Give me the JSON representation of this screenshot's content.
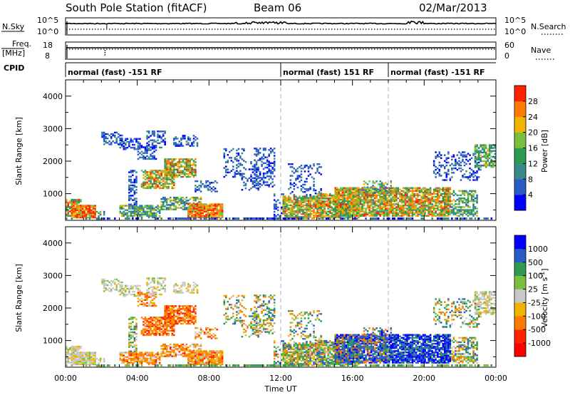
{
  "header": {
    "station": "South Pole Station (fitACF)",
    "beam": "Beam 06",
    "date": "02/Mar/2013"
  },
  "aux_panels": {
    "nsky_label": "N.Sky",
    "nsky_ticks": [
      "10^5",
      "10^0"
    ],
    "nsearch_label": "N.Search",
    "nsearch_ticks": [
      "10^5",
      "10^0"
    ],
    "freq_label_top": "Freq.",
    "freq_label_bottom": "[MHz]",
    "freq_ticks": [
      "18",
      "8"
    ],
    "nave_label": "Nave",
    "nave_ticks": [
      "60",
      "0"
    ],
    "cpid_label": "CPID"
  },
  "cpid_segments": [
    {
      "label": "normal (fast) -151 RF",
      "start": 0,
      "end": 12
    },
    {
      "label": "normal (fast) 151 RF",
      "start": 12,
      "end": 18
    },
    {
      "label": "normal (fast) -151 RF",
      "start": 18,
      "end": 24
    }
  ],
  "chart_data": [
    {
      "type": "heatmap",
      "panel": "power",
      "ylabel": "Slant Range [km]",
      "xlim": [
        0,
        24
      ],
      "ylim": [
        180,
        4500
      ],
      "yticks": [
        1000,
        2000,
        3000,
        4000
      ],
      "colorbar": {
        "label": "Power [dB]",
        "range": [
          0,
          32
        ],
        "ticks": [
          "4",
          "8",
          "12",
          "16",
          "20",
          "24",
          "28"
        ],
        "colors": [
          "#0000ff",
          "#2a5cc8",
          "#3a8a8a",
          "#2e9a52",
          "#7ac040",
          "#f0b400",
          "#ff7a00",
          "#ff2200"
        ]
      },
      "vertical_markers": [
        12,
        18
      ]
    },
    {
      "type": "heatmap",
      "panel": "velocity",
      "ylabel": "Slant Range [km]",
      "xlabel": "Time UT",
      "xlim": [
        0,
        24
      ],
      "ylim": [
        180,
        4500
      ],
      "xticks": [
        "00:00",
        "04:00",
        "08:00",
        "12:00",
        "16:00",
        "20:00",
        "00:00"
      ],
      "yticks": [
        1000,
        2000,
        3000,
        4000
      ],
      "colorbar": {
        "label": "Velocity [m s^-1]",
        "ticks": [
          "1000",
          "500",
          "100",
          "25",
          "-25",
          "-100",
          "-500",
          "-1000"
        ],
        "colors": [
          "#0000ff",
          "#2a5cc8",
          "#2e9a52",
          "#7ac040",
          "#c8c8c8",
          "#f0b400",
          "#ff7a00",
          "#ff2200",
          "#ff0000"
        ]
      },
      "vertical_markers": [
        12,
        18
      ]
    }
  ]
}
